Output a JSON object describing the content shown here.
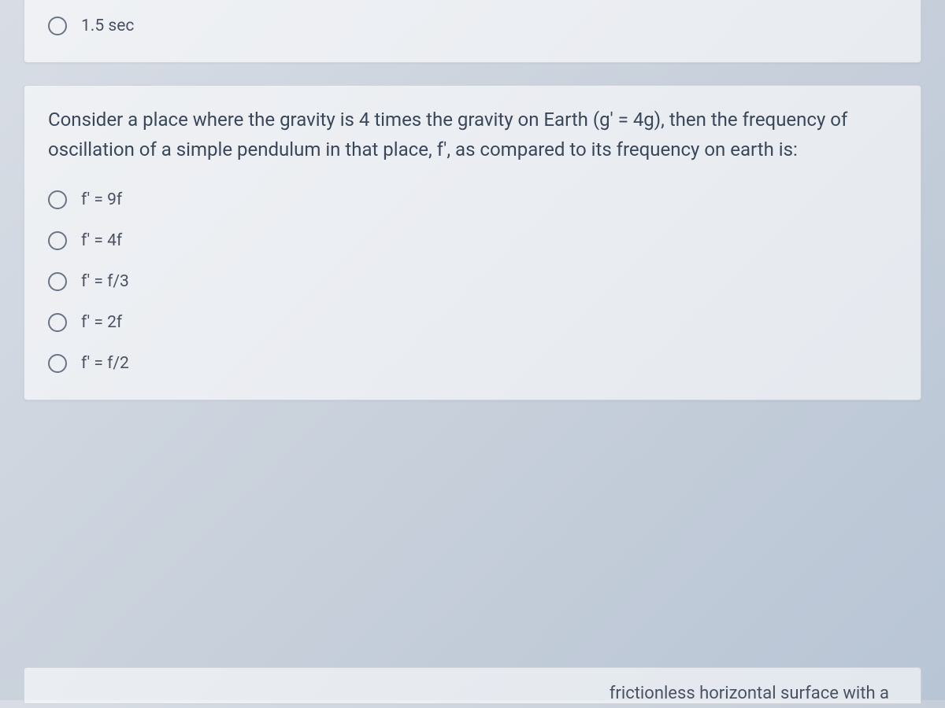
{
  "quiz": {
    "question1_partial": {
      "options": [
        {
          "label": "1.5 sec"
        }
      ]
    },
    "question2": {
      "text": "Consider a place where the gravity is 4 times the gravity on Earth (g' = 4g), then the frequency of oscillation of a simple pendulum in that place, f', as compared to its frequency on earth is:",
      "options": [
        {
          "label": "f' = 9f"
        },
        {
          "label": "f' = 4f"
        },
        {
          "label": "f' = f/3"
        },
        {
          "label": "f' = 2f"
        },
        {
          "label": "f' = f/2"
        }
      ]
    },
    "question3_partial": {
      "fragment": "frictionless horizontal surface with a"
    }
  },
  "styling": {
    "background_gradient_start": "#d8dde5",
    "background_gradient_mid": "#c8d0db",
    "background_gradient_end": "#b8c5d5",
    "card_background": "rgba(255,255,255,0.6)",
    "card_border": "rgba(180,185,195,0.5)",
    "question_text_color": "#3a4758",
    "option_text_color": "#4a5262",
    "radio_border_color": "#6a7485",
    "question_fontsize": 24,
    "option_fontsize": 21
  }
}
